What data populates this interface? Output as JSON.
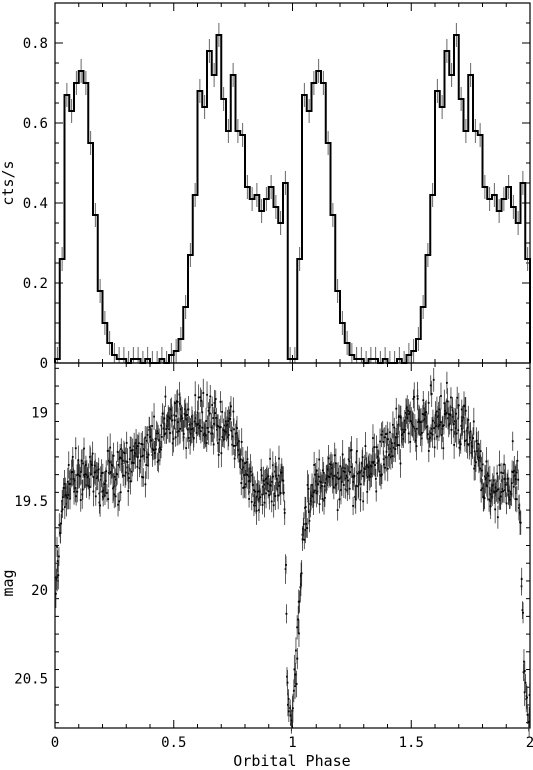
{
  "chart_data": [
    {
      "type": "line",
      "panel": "top",
      "title": "",
      "xlabel": "",
      "ylabel": "cts/s",
      "xlim": [
        0,
        2
      ],
      "ylim": [
        0,
        0.9
      ],
      "yticks": [
        0,
        0.2,
        0.4,
        0.6,
        0.8
      ],
      "ytick_labels": [
        "0",
        "0.2",
        "0.4",
        "0.6",
        "0.8"
      ],
      "style": "histogram step with error bars",
      "x": [
        0.0,
        0.02,
        0.04,
        0.06,
        0.08,
        0.1,
        0.12,
        0.14,
        0.16,
        0.18,
        0.2,
        0.22,
        0.24,
        0.26,
        0.28,
        0.3,
        0.32,
        0.34,
        0.36,
        0.38,
        0.4,
        0.42,
        0.44,
        0.46,
        0.48,
        0.5,
        0.52,
        0.54,
        0.56,
        0.58,
        0.6,
        0.62,
        0.64,
        0.66,
        0.68,
        0.7,
        0.72,
        0.74,
        0.76,
        0.78,
        0.8,
        0.82,
        0.84,
        0.86,
        0.88,
        0.9,
        0.92,
        0.94,
        0.96,
        0.98,
        1.0,
        1.02,
        1.04,
        1.06,
        1.08,
        1.1,
        1.12,
        1.14,
        1.16,
        1.18,
        1.2,
        1.22,
        1.24,
        1.26,
        1.28,
        1.3,
        1.32,
        1.34,
        1.36,
        1.38,
        1.4,
        1.42,
        1.44,
        1.46,
        1.48,
        1.5,
        1.52,
        1.54,
        1.56,
        1.58,
        1.6,
        1.62,
        1.64,
        1.66,
        1.68,
        1.7,
        1.72,
        1.74,
        1.76,
        1.78,
        1.8,
        1.82,
        1.84,
        1.86,
        1.88,
        1.9,
        1.92,
        1.94,
        1.96,
        1.98
      ],
      "series": [
        {
          "values": [
            0.01,
            0.26,
            0.67,
            0.63,
            0.7,
            0.73,
            0.7,
            0.55,
            0.37,
            0.18,
            0.1,
            0.05,
            0.02,
            0.01,
            0.01,
            0.0,
            0.01,
            0.01,
            0.0,
            0.01,
            0.0,
            0.0,
            0.01,
            0.0,
            0.02,
            0.03,
            0.06,
            0.14,
            0.27,
            0.42,
            0.68,
            0.64,
            0.78,
            0.72,
            0.82,
            0.66,
            0.58,
            0.72,
            0.58,
            0.57,
            0.44,
            0.41,
            0.42,
            0.38,
            0.41,
            0.44,
            0.39,
            0.35,
            0.45,
            0.01,
            0.01,
            0.26,
            0.67,
            0.63,
            0.7,
            0.73,
            0.7,
            0.55,
            0.37,
            0.18,
            0.1,
            0.05,
            0.02,
            0.01,
            0.01,
            0.0,
            0.01,
            0.01,
            0.0,
            0.01,
            0.0,
            0.0,
            0.01,
            0.0,
            0.02,
            0.03,
            0.06,
            0.14,
            0.27,
            0.42,
            0.68,
            0.64,
            0.78,
            0.72,
            0.82,
            0.66,
            0.58,
            0.72,
            0.58,
            0.57,
            0.44,
            0.41,
            0.42,
            0.38,
            0.41,
            0.44,
            0.39,
            0.35,
            0.45,
            0.26
          ],
          "errors": 0.03
        }
      ]
    },
    {
      "type": "scatter",
      "panel": "bottom",
      "title": "",
      "xlabel": "Orbital Phase",
      "ylabel": "mag",
      "xlim": [
        0,
        2
      ],
      "ylim": [
        20.78,
        18.72
      ],
      "y_inverted": true,
      "xticks": [
        0,
        0.5,
        1,
        1.5,
        2
      ],
      "xtick_labels": [
        "0",
        "0.5",
        "1",
        "1.5",
        "2"
      ],
      "yticks": [
        19,
        19.5,
        20,
        20.5
      ],
      "ytick_labels": [
        "19",
        "19.5",
        "20",
        "20.5"
      ],
      "style": "dense points with vertical error bars",
      "profile_x": [
        0.0,
        0.02,
        0.04,
        0.06,
        0.08,
        0.1,
        0.15,
        0.2,
        0.25,
        0.3,
        0.35,
        0.4,
        0.45,
        0.5,
        0.55,
        0.6,
        0.65,
        0.7,
        0.75,
        0.8,
        0.85,
        0.9,
        0.95,
        0.96,
        0.97,
        0.975,
        0.98,
        0.99,
        1.0,
        1.01,
        1.02,
        1.03,
        1.04,
        1.06,
        1.08,
        1.1,
        1.15,
        1.2,
        1.25,
        1.3,
        1.35,
        1.4,
        1.45,
        1.5,
        1.55,
        1.6,
        1.65,
        1.7,
        1.75,
        1.8,
        1.85,
        1.9,
        1.95,
        1.96,
        1.97,
        1.975,
        1.98,
        1.99,
        2.0
      ],
      "profile_mag": [
        20.05,
        19.7,
        19.48,
        19.4,
        19.37,
        19.37,
        19.35,
        19.38,
        19.36,
        19.3,
        19.25,
        19.2,
        19.1,
        19.03,
        19.06,
        19.05,
        19.02,
        19.06,
        19.1,
        19.35,
        19.45,
        19.4,
        19.35,
        19.36,
        19.75,
        20.25,
        20.6,
        20.75,
        20.7,
        20.55,
        20.3,
        20.1,
        19.75,
        19.55,
        19.45,
        19.4,
        19.37,
        19.36,
        19.35,
        19.33,
        19.27,
        19.2,
        19.1,
        19.03,
        19.06,
        19.05,
        19.03,
        19.06,
        19.12,
        19.35,
        19.45,
        19.42,
        19.36,
        19.7,
        20.1,
        20.4,
        20.55,
        20.7,
        20.75
      ],
      "scatter_sigma": 0.07,
      "error_bar": 0.06
    }
  ]
}
